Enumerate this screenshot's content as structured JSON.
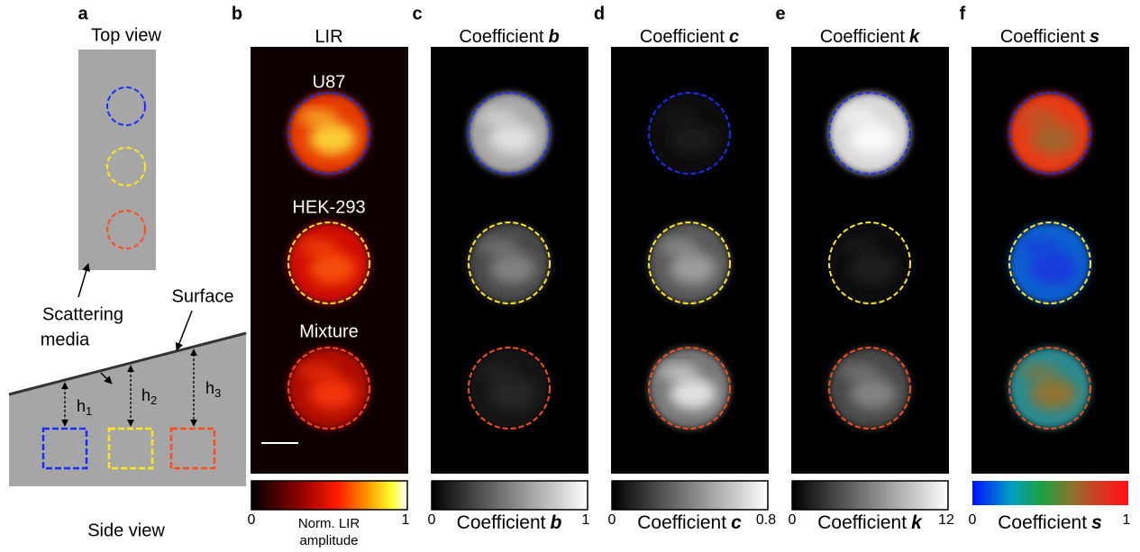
{
  "panel_a": {
    "letter": "a",
    "top_title": "Top view",
    "side_title": "Side view",
    "media_label": [
      "Scattering",
      "media"
    ],
    "surface_label": "Surface",
    "depths": [
      {
        "symbol": "h",
        "index": 1
      },
      {
        "symbol": "h",
        "index": 2
      },
      {
        "symbol": "h",
        "index": 3
      }
    ]
  },
  "panels": [
    {
      "letter": "b",
      "title": {
        "text": "LIR"
      },
      "samples": [
        "U87",
        "HEK-293",
        "Mixture"
      ],
      "colorbar": {
        "min": 0,
        "max": 1,
        "label": [
          "Norm. LIR",
          "amplitude"
        ]
      }
    },
    {
      "letter": "c",
      "title": {
        "text": "Coefficient",
        "symbol": "b"
      },
      "colorbar": {
        "min": 0,
        "max": 1,
        "label": {
          "text": "Coefficient",
          "symbol": "b"
        }
      }
    },
    {
      "letter": "d",
      "title": {
        "text": "Coefficient",
        "symbol": "c"
      },
      "colorbar": {
        "min": 0,
        "max": 0.8,
        "label": {
          "text": "Coefficient",
          "symbol": "c"
        }
      }
    },
    {
      "letter": "e",
      "title": {
        "text": "Coefficient",
        "symbol": "k"
      },
      "colorbar": {
        "min": 0,
        "max": 12,
        "label": {
          "text": "Coefficient",
          "symbol": "k"
        }
      }
    },
    {
      "letter": "f",
      "title": {
        "text": "Coefficient",
        "symbol": "s"
      },
      "colorbar": {
        "min": 0,
        "max": 1,
        "label": {
          "text": "Coefficient",
          "symbol": "s"
        }
      }
    }
  ]
}
